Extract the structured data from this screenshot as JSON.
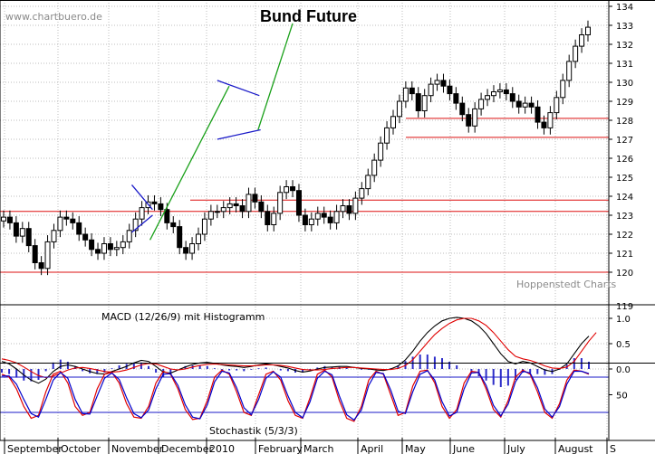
{
  "watermark": "www.chartbuero.de",
  "credit": "Hoppenstedt Charts",
  "chart_data": [
    {
      "type": "candlestick",
      "title": "Bund Future",
      "ylim": [
        119.5,
        134.5
      ],
      "yticks": [
        120,
        121,
        122,
        123,
        124,
        125,
        126,
        127,
        128,
        129,
        130,
        131,
        132,
        133,
        134
      ],
      "grid": true,
      "months": [
        "September",
        "October",
        "November",
        "December",
        "2010",
        "February",
        "March",
        "April",
        "May",
        "June",
        "July",
        "August",
        "S"
      ],
      "support_resistance": [
        120.0,
        123.2,
        123.8,
        127.1,
        128.1
      ],
      "trend_channels": [
        {
          "name": "pennant-upper",
          "from": [
            20.4,
            124.6
          ],
          "to": [
            23.7,
            123.3
          ]
        },
        {
          "name": "pennant-lower",
          "from": [
            20.4,
            122.1
          ],
          "to": [
            23.7,
            123.0
          ]
        },
        {
          "name": "flag-upper",
          "from": [
            34.0,
            130.1
          ],
          "to": [
            40.7,
            129.3
          ]
        },
        {
          "name": "flag-lower",
          "from": [
            34.0,
            127.0
          ],
          "to": [
            40.9,
            127.5
          ]
        }
      ],
      "trendlines": [
        {
          "name": "uptrend-1",
          "from": [
            23.3,
            121.7
          ],
          "to": [
            35.9,
            129.8
          ]
        },
        {
          "name": "uptrend-2",
          "from": [
            40.5,
            127.5
          ],
          "to": [
            46.0,
            133.1
          ]
        }
      ],
      "closes": [
        122.9,
        122.6,
        121.9,
        122.3,
        121.4,
        120.5,
        120.2,
        121.6,
        122.2,
        122.9,
        122.8,
        122.6,
        122.0,
        121.7,
        121.2,
        121.0,
        121.5,
        121.2,
        121.3,
        121.6,
        122.2,
        122.8,
        123.4,
        123.7,
        123.6,
        123.3,
        122.6,
        122.4,
        121.3,
        121.0,
        121.5,
        122.0,
        122.8,
        123.2,
        123.2,
        123.4,
        123.6,
        123.5,
        123.2,
        124.1,
        123.7,
        123.2,
        122.5,
        123.1,
        124.2,
        124.5,
        124.3,
        123.0,
        122.5,
        122.8,
        123.1,
        122.9,
        122.6,
        123.2,
        123.5,
        123.1,
        123.9,
        124.4,
        125.1,
        125.9,
        126.8,
        127.6,
        128.2,
        129.0,
        129.7,
        129.4,
        128.5,
        129.3,
        129.9,
        130.1,
        129.8,
        129.4,
        128.9,
        128.3,
        127.7,
        128.6,
        129.1,
        129.3,
        129.5,
        129.6,
        129.4,
        129.0,
        128.7,
        128.9,
        128.7,
        127.9,
        127.6,
        128.4,
        129.2,
        130.1,
        131.1,
        131.9,
        132.5,
        132.9
      ]
    },
    {
      "type": "line",
      "title": "MACD (12/26/9) mit Histogramm",
      "yticks": [
        1.0,
        0.5,
        0.0
      ],
      "ylim": [
        -0.5,
        1.4
      ],
      "series": [
        {
          "color": "#000000",
          "values": [
            0.15,
            0.1,
            0.0,
            -0.12,
            -0.22,
            -0.28,
            -0.2,
            -0.05,
            0.05,
            0.08,
            0.05,
            0.0,
            -0.05,
            -0.09,
            -0.1,
            -0.05,
            0.0,
            0.05,
            0.12,
            0.17,
            0.15,
            0.05,
            -0.06,
            -0.08,
            -0.02,
            0.04,
            0.09,
            0.12,
            0.13,
            0.11,
            0.08,
            0.06,
            0.05,
            0.03,
            0.05,
            0.08,
            0.1,
            0.08,
            0.05,
            0.02,
            -0.03,
            -0.06,
            -0.04,
            0.0,
            0.03,
            0.04,
            0.05,
            0.05,
            0.03,
            0.01,
            0.0,
            -0.02,
            -0.03,
            0.0,
            0.06,
            0.18,
            0.35,
            0.55,
            0.72,
            0.85,
            0.95,
            1.0,
            1.02,
            1.0,
            0.95,
            0.85,
            0.7,
            0.5,
            0.3,
            0.15,
            0.1,
            0.15,
            0.12,
            0.05,
            -0.02,
            -0.05,
            0.0,
            0.1,
            0.3,
            0.5,
            0.65
          ]
        },
        {
          "color": "#e00000",
          "values": [
            0.2,
            0.17,
            0.12,
            0.04,
            -0.05,
            -0.13,
            -0.17,
            -0.14,
            -0.08,
            -0.02,
            0.02,
            0.03,
            0.01,
            -0.02,
            -0.05,
            -0.06,
            -0.05,
            -0.02,
            0.03,
            0.08,
            0.11,
            0.1,
            0.05,
            0.0,
            -0.02,
            0.0,
            0.04,
            0.07,
            0.09,
            0.1,
            0.09,
            0.08,
            0.07,
            0.06,
            0.06,
            0.07,
            0.08,
            0.08,
            0.07,
            0.05,
            0.02,
            -0.01,
            -0.02,
            -0.02,
            -0.01,
            0.01,
            0.02,
            0.03,
            0.03,
            0.02,
            0.01,
            0.0,
            -0.01,
            -0.01,
            0.01,
            0.07,
            0.18,
            0.35,
            0.52,
            0.68,
            0.8,
            0.9,
            0.97,
            1.0,
            1.0,
            0.95,
            0.86,
            0.72,
            0.55,
            0.38,
            0.25,
            0.2,
            0.17,
            0.12,
            0.06,
            0.02,
            0.01,
            0.04,
            0.15,
            0.35,
            0.55,
            0.72
          ]
        }
      ]
    },
    {
      "type": "line",
      "title": "Stochastik (5/3/3)",
      "yticks": [
        50
      ],
      "ylim": [
        0,
        100
      ],
      "reference_lines": [
        80,
        20
      ],
      "series": [
        {
          "color": "#e00000",
          "values": [
            85,
            80,
            60,
            30,
            10,
            15,
            55,
            85,
            90,
            70,
            30,
            15,
            20,
            60,
            85,
            88,
            70,
            35,
            12,
            10,
            30,
            70,
            90,
            85,
            60,
            25,
            8,
            10,
            40,
            80,
            92,
            85,
            55,
            20,
            15,
            50,
            85,
            90,
            75,
            40,
            15,
            10,
            45,
            85,
            92,
            80,
            40,
            10,
            5,
            30,
            75,
            90,
            85,
            50,
            15,
            20,
            65,
            90,
            92,
            70,
            30,
            10,
            25,
            70,
            90,
            88,
            60,
            25,
            12,
            40,
            80,
            92,
            85,
            55,
            20,
            10,
            35,
            75,
            92,
            90,
            85
          ]
        },
        {
          "color": "#0000cc",
          "values": [
            82,
            82,
            68,
            42,
            18,
            12,
            42,
            75,
            88,
            78,
            42,
            18,
            17,
            48,
            78,
            87,
            76,
            45,
            18,
            11,
            24,
            60,
            85,
            86,
            66,
            33,
            12,
            9,
            33,
            72,
            90,
            87,
            62,
            28,
            16,
            42,
            78,
            89,
            80,
            48,
            20,
            11,
            38,
            78,
            90,
            84,
            48,
            16,
            7,
            24,
            66,
            88,
            86,
            58,
            22,
            18,
            55,
            85,
            91,
            75,
            38,
            14,
            20,
            60,
            87,
            88,
            66,
            32,
            14,
            34,
            72,
            90,
            87,
            62,
            26,
            12,
            30,
            68,
            90,
            90,
            86
          ]
        }
      ]
    }
  ]
}
